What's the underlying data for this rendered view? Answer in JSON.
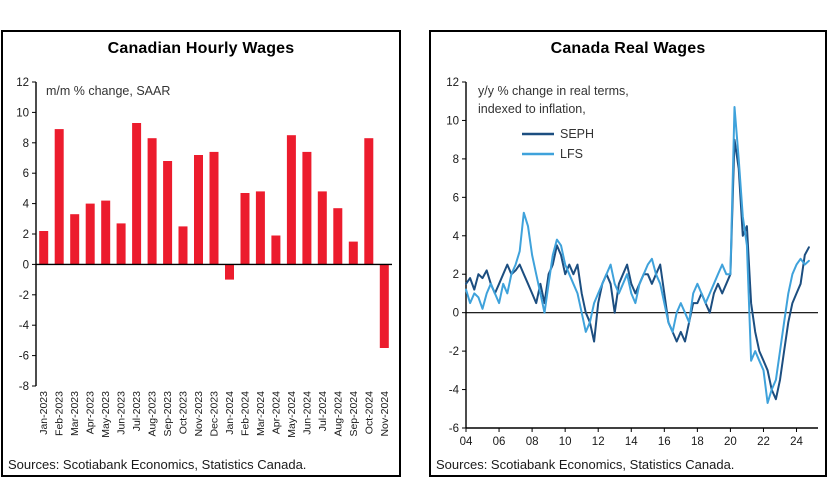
{
  "chart_data": [
    {
      "type": "bar",
      "title": "Canadian Hourly Wages",
      "subtitle": "m/m % change, SAAR",
      "source": "Sources: Scotiabank Economics, Statistics Canada.",
      "bar_color": "#EC1C2D",
      "ylim": [
        -8,
        12
      ],
      "ytick_step": 2,
      "grid": false,
      "categories": [
        "Jan-2023",
        "Feb-2023",
        "Mar-2023",
        "Apr-2023",
        "May-2023",
        "Jun-2023",
        "Jul-2023",
        "Aug-2023",
        "Sep-2023",
        "Oct-2023",
        "Nov-2023",
        "Dec-2023",
        "Jan-2024",
        "Feb-2024",
        "Mar-2024",
        "Apr-2024",
        "May-2024",
        "Jun-2024",
        "Jul-2024",
        "Aug-2024",
        "Sep-2024",
        "Oct-2024",
        "Nov-2024"
      ],
      "values": [
        2.2,
        8.9,
        3.3,
        4.0,
        4.2,
        2.7,
        9.3,
        8.3,
        6.8,
        2.5,
        7.2,
        7.4,
        -1.0,
        4.7,
        4.8,
        1.9,
        8.5,
        7.4,
        4.8,
        3.7,
        1.5,
        8.3,
        -5.5
      ]
    },
    {
      "type": "line",
      "title": "Canada Real Wages",
      "subtitle_lines": [
        "y/y % change in real terms,",
        "indexed to inflation,"
      ],
      "source": "Sources: Scotiabank Economics, Statistics Canada.",
      "ylim": [
        -6,
        12
      ],
      "ytick_step": 2,
      "grid": false,
      "legend_position": "top-left",
      "x_start": 2004,
      "x_step": 0.25,
      "x_axis_end": 2025.3,
      "x_tick_years": [
        2004,
        2006,
        2008,
        2010,
        2012,
        2014,
        2016,
        2018,
        2020,
        2022,
        2024
      ],
      "x_tick_labels": [
        "04",
        "06",
        "08",
        "10",
        "12",
        "14",
        "16",
        "18",
        "20",
        "22",
        "24"
      ],
      "series": [
        {
          "name": "SEPH",
          "color": "#1C4E80",
          "values": [
            1.5,
            1.8,
            1.2,
            2.0,
            1.8,
            2.2,
            1.5,
            1.0,
            1.5,
            2.0,
            2.5,
            2.0,
            2.2,
            2.5,
            2.0,
            1.5,
            1.0,
            0.5,
            1.5,
            0.5,
            2.0,
            2.5,
            3.5,
            3.0,
            2.0,
            2.5,
            2.0,
            2.5,
            1.0,
            0.0,
            -0.5,
            -1.5,
            0.5,
            1.5,
            2.0,
            1.5,
            0.0,
            1.5,
            2.0,
            2.5,
            1.5,
            1.0,
            1.5,
            2.0,
            2.0,
            1.5,
            2.0,
            2.5,
            1.0,
            -0.5,
            -1.0,
            -1.5,
            -1.0,
            -1.5,
            -0.5,
            0.5,
            0.5,
            1.0,
            0.5,
            0.0,
            1.0,
            1.5,
            1.0,
            1.5,
            2.0,
            9.0,
            7.5,
            4.0,
            4.5,
            0.5,
            -1.0,
            -2.0,
            -2.5,
            -3.0,
            -4.0,
            -4.5,
            -3.5,
            -2.0,
            -0.5,
            0.5,
            1.0,
            1.5,
            3.0,
            3.4
          ]
        },
        {
          "name": "LFS",
          "color": "#3FA2DB",
          "values": [
            1.2,
            0.5,
            1.0,
            0.8,
            0.2,
            1.0,
            1.5,
            1.0,
            0.5,
            1.5,
            1.0,
            2.0,
            2.5,
            3.2,
            5.2,
            4.5,
            3.0,
            2.0,
            1.0,
            0.0,
            1.5,
            3.0,
            3.8,
            3.5,
            2.5,
            2.0,
            1.5,
            1.0,
            0.0,
            -1.0,
            -0.5,
            0.5,
            1.0,
            1.5,
            2.0,
            2.5,
            1.5,
            1.0,
            1.5,
            2.0,
            1.0,
            0.5,
            1.5,
            2.0,
            2.5,
            2.8,
            2.0,
            1.5,
            0.5,
            -0.5,
            -1.0,
            0.0,
            0.5,
            0.0,
            -0.5,
            1.0,
            1.5,
            1.0,
            0.5,
            1.0,
            1.5,
            2.0,
            2.5,
            2.0,
            2.0,
            10.7,
            8.0,
            5.0,
            3.5,
            -2.5,
            -2.0,
            -2.5,
            -3.0,
            -4.7,
            -4.0,
            -3.5,
            -2.0,
            -0.5,
            1.0,
            2.0,
            2.5,
            2.8,
            2.5,
            2.7
          ]
        }
      ]
    }
  ]
}
